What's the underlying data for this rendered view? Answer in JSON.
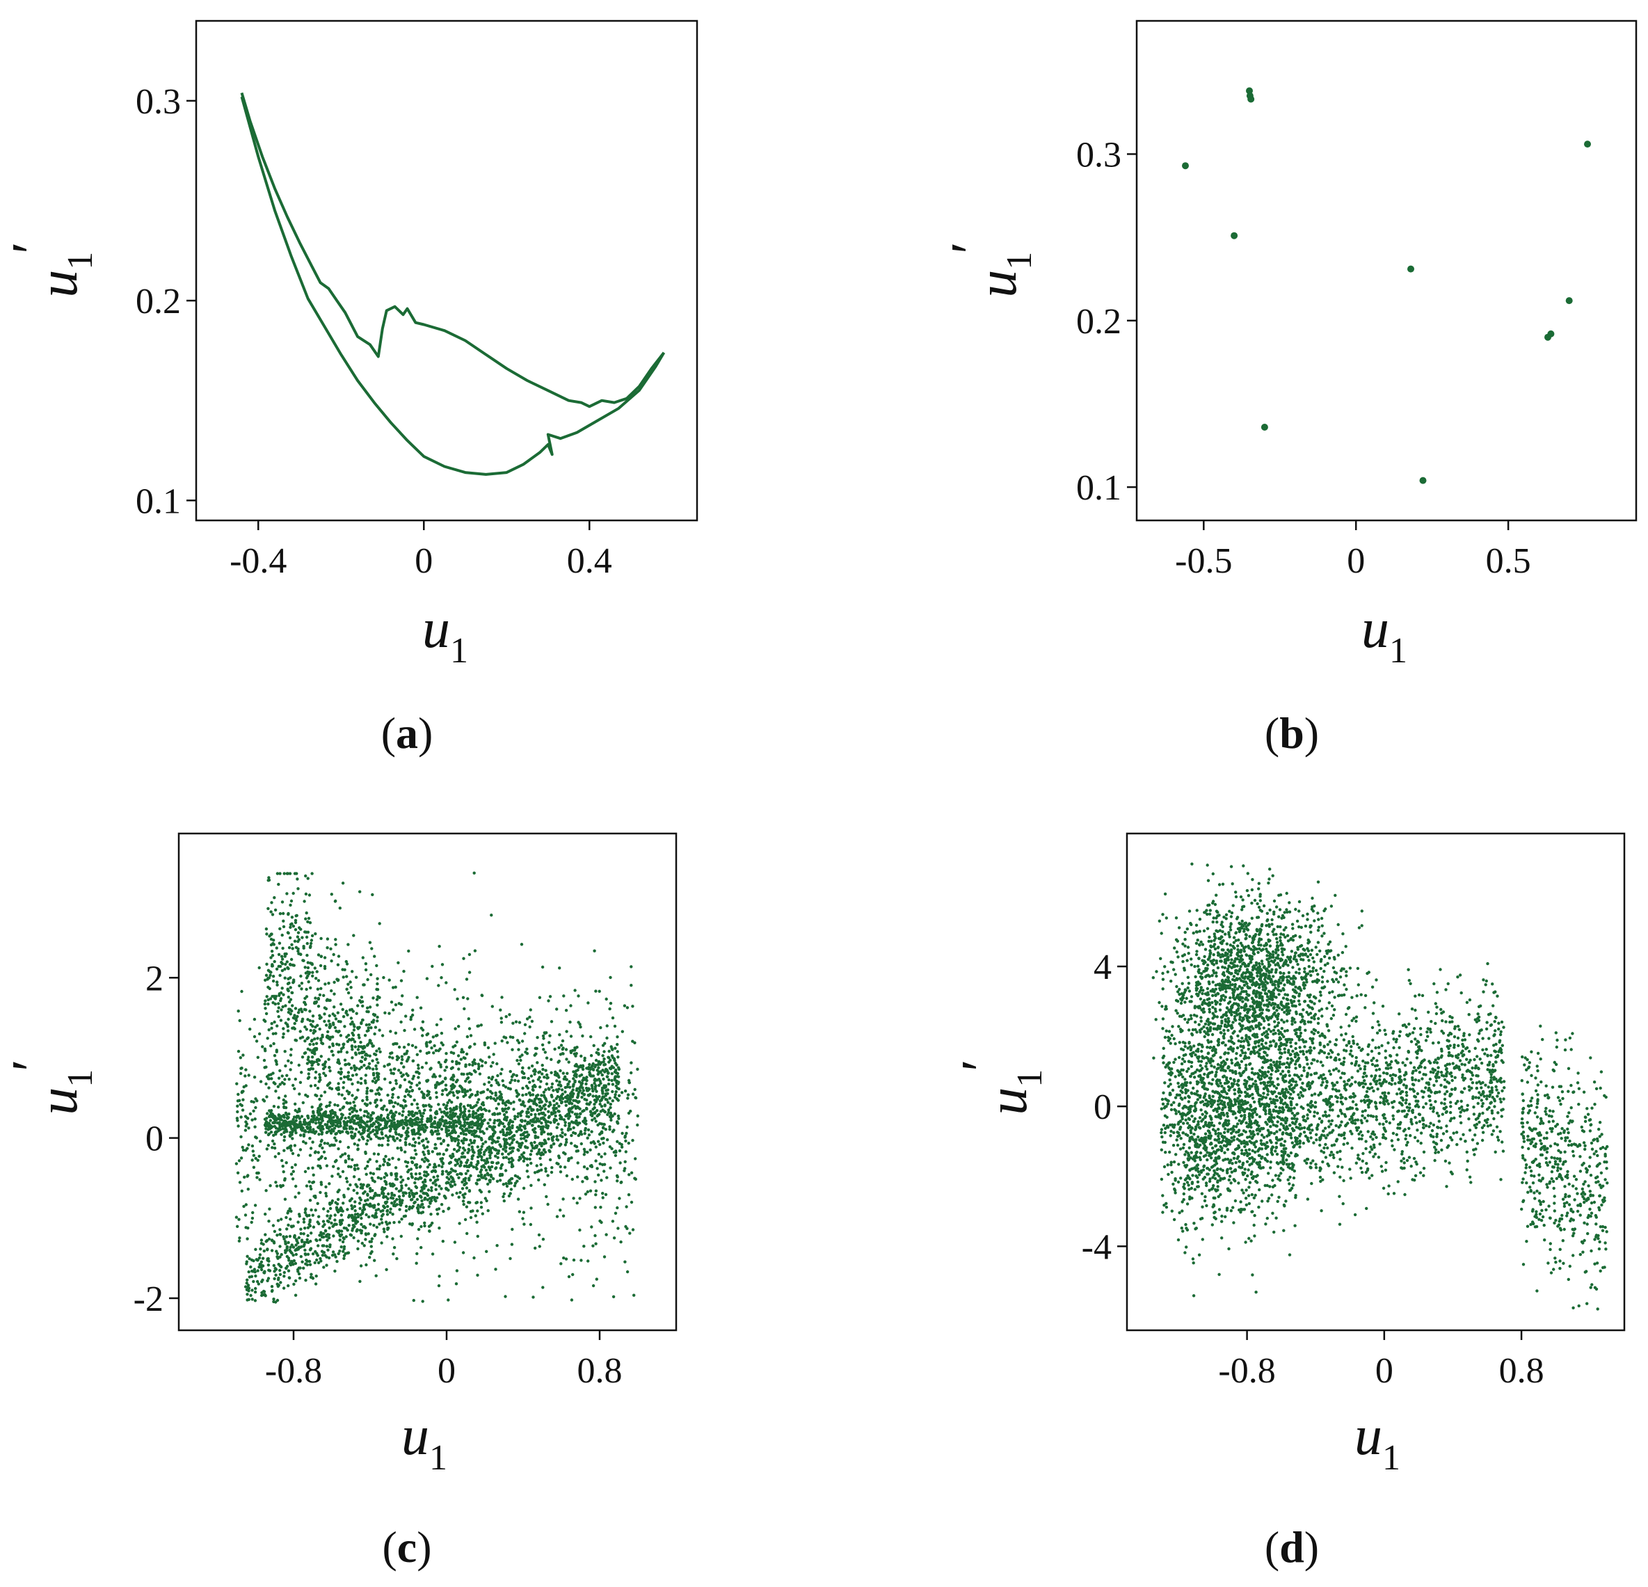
{
  "colors": {
    "data": "#1b6b35",
    "axis": "#111111"
  },
  "chart_data": [
    {
      "panel": "(a)",
      "type": "line",
      "xlabel": "u1",
      "ylabel": "u1'",
      "xlim": [
        -0.55,
        0.66
      ],
      "ylim": [
        0.09,
        0.34
      ],
      "xticks": [
        -0.4,
        0,
        0.4
      ],
      "xtick_labels": [
        "-0.4",
        "0",
        "0.4"
      ],
      "yticks": [
        0.1,
        0.2,
        0.3
      ],
      "ytick_labels": [
        "0.1",
        "0.2",
        "0.3"
      ],
      "series": [
        {
          "x": [
            -0.44,
            -0.42,
            -0.39,
            -0.36,
            -0.33,
            -0.3,
            -0.27,
            -0.25,
            -0.23,
            -0.21,
            -0.19,
            -0.16,
            -0.13,
            -0.11,
            -0.1,
            -0.09,
            -0.07,
            -0.05,
            -0.04,
            -0.02,
            0.0,
            0.05,
            0.1,
            0.15,
            0.2,
            0.25,
            0.3,
            0.35,
            0.38,
            0.4,
            0.43,
            0.46,
            0.49,
            0.52,
            0.55,
            0.58
          ],
          "y": [
            0.304,
            0.29,
            0.272,
            0.256,
            0.242,
            0.229,
            0.217,
            0.209,
            0.206,
            0.2,
            0.194,
            0.182,
            0.178,
            0.172,
            0.186,
            0.195,
            0.197,
            0.193,
            0.196,
            0.189,
            0.188,
            0.185,
            0.18,
            0.173,
            0.166,
            0.16,
            0.155,
            0.15,
            0.149,
            0.147,
            0.15,
            0.149,
            0.151,
            0.157,
            0.166,
            0.174
          ]
        },
        {
          "x": [
            -0.44,
            -0.4,
            -0.36,
            -0.32,
            -0.28,
            -0.24,
            -0.2,
            -0.16,
            -0.12,
            -0.08,
            -0.04,
            0.0,
            0.05,
            0.1,
            0.15,
            0.2,
            0.24,
            0.28,
            0.3,
            0.31,
            0.3,
            0.33,
            0.37,
            0.42,
            0.47,
            0.52,
            0.56,
            0.58
          ],
          "y": [
            0.302,
            0.272,
            0.245,
            0.222,
            0.201,
            0.187,
            0.173,
            0.16,
            0.149,
            0.139,
            0.13,
            0.122,
            0.117,
            0.114,
            0.113,
            0.114,
            0.118,
            0.124,
            0.128,
            0.123,
            0.133,
            0.131,
            0.134,
            0.14,
            0.146,
            0.155,
            0.167,
            0.174
          ]
        }
      ]
    },
    {
      "panel": "(b)",
      "type": "scatter",
      "xlabel": "u1",
      "ylabel": "u1'",
      "xlim": [
        -0.72,
        0.92
      ],
      "ylim": [
        0.08,
        0.38
      ],
      "xticks": [
        -0.5,
        0,
        0.5
      ],
      "xtick_labels": [
        "-0.5",
        "0",
        "0.5"
      ],
      "yticks": [
        0.1,
        0.2,
        0.3
      ],
      "ytick_labels": [
        "0.1",
        "0.2",
        "0.3"
      ],
      "points": [
        [
          -0.56,
          0.293
        ],
        [
          -0.35,
          0.338
        ],
        [
          -0.348,
          0.335
        ],
        [
          -0.345,
          0.333
        ],
        [
          -0.4,
          0.251
        ],
        [
          -0.3,
          0.136
        ],
        [
          0.18,
          0.231
        ],
        [
          0.22,
          0.104
        ],
        [
          0.64,
          0.192
        ],
        [
          0.63,
          0.19
        ],
        [
          0.7,
          0.212
        ],
        [
          0.76,
          0.306
        ]
      ]
    },
    {
      "panel": "(c)",
      "type": "scatter",
      "xlabel": "u1",
      "ylabel": "u1'",
      "xlim": [
        -1.4,
        1.2
      ],
      "ylim": [
        -2.4,
        3.8
      ],
      "xticks": [
        -0.8,
        0,
        0.8
      ],
      "xtick_labels": [
        "-0.8",
        "0",
        "0.8"
      ],
      "yticks": [
        -2,
        0,
        2
      ],
      "ytick_labels": [
        "-2",
        "0",
        "2"
      ],
      "points_note": "",
      "points": []
    },
    {
      "panel": "(d)",
      "type": "scatter",
      "xlabel": "u1",
      "ylabel": "u1'",
      "xlim": [
        -1.5,
        1.4
      ],
      "ylim": [
        -6.4,
        7.8
      ],
      "xticks": [
        -0.8,
        0,
        0.8
      ],
      "xtick_labels": [
        "-0.8",
        "0",
        "0.8"
      ],
      "yticks": [
        -4,
        0,
        4
      ],
      "ytick_labels": [
        "-4",
        "0",
        "4"
      ],
      "points": []
    }
  ]
}
